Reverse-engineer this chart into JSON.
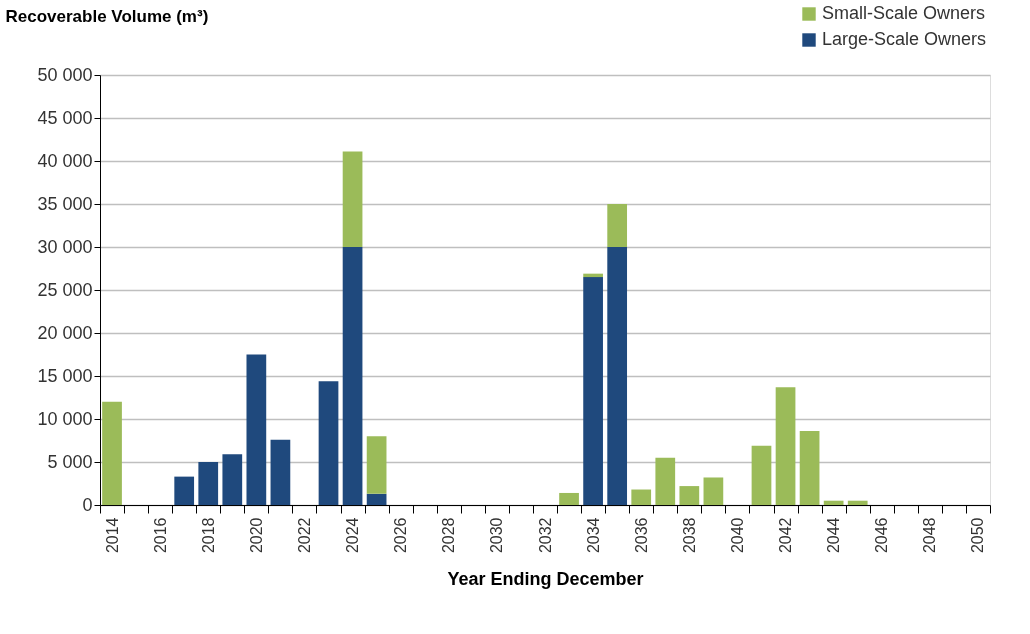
{
  "chart_data": {
    "type": "bar",
    "stacked": true,
    "ylabel": "Recoverable Volume (m³)",
    "xlabel": "Year Ending December",
    "categories": [
      "2014",
      null,
      "2016",
      null,
      "2018",
      null,
      "2020",
      null,
      "2022",
      null,
      "2024",
      null,
      "2026",
      null,
      "2028",
      null,
      "2030",
      null,
      "2032",
      null,
      "2034",
      null,
      "2036",
      null,
      "2038",
      null,
      "2040",
      null,
      "2042",
      null,
      "2044",
      null,
      "2046",
      null,
      "2048",
      null,
      "2050"
    ],
    "series": [
      {
        "name": "Large-Scale Owners",
        "color": "#1f497d",
        "values": [
          null,
          null,
          null,
          3300,
          5000,
          5900,
          17500,
          7600,
          null,
          14400,
          30000,
          1300,
          null,
          null,
          null,
          null,
          null,
          null,
          null,
          null,
          26500,
          30000,
          null,
          null,
          null,
          null,
          null,
          null,
          null,
          null,
          null,
          null,
          null,
          null,
          null,
          null,
          null
        ]
      },
      {
        "name": "Small-Scale Owners",
        "color": "#9bbb59",
        "values": [
          12000,
          null,
          null,
          null,
          null,
          null,
          null,
          null,
          null,
          null,
          11100,
          6700,
          null,
          null,
          null,
          null,
          null,
          null,
          null,
          1400,
          400,
          5000,
          1800,
          5500,
          2200,
          3200,
          null,
          6900,
          13700,
          8600,
          500,
          500,
          null,
          null,
          null,
          null,
          null
        ]
      }
    ],
    "ylim": [
      0,
      50000
    ],
    "yticks": [
      0,
      {
        "value": 5000,
        "label": "5 000"
      },
      {
        "value": 10000,
        "label": "10 000"
      },
      {
        "value": 15000,
        "label": "15 000"
      },
      {
        "value": 20000,
        "label": "20 000"
      },
      {
        "value": 25000,
        "label": "25 000"
      },
      {
        "value": 30000,
        "label": "30 000"
      },
      {
        "value": 35000,
        "label": "35 000"
      },
      {
        "value": 40000,
        "label": "40 000"
      },
      {
        "value": 45000,
        "label": "45 000"
      },
      {
        "value": 50000,
        "label": "50 000"
      }
    ],
    "grid": "y",
    "legend": "top right"
  }
}
